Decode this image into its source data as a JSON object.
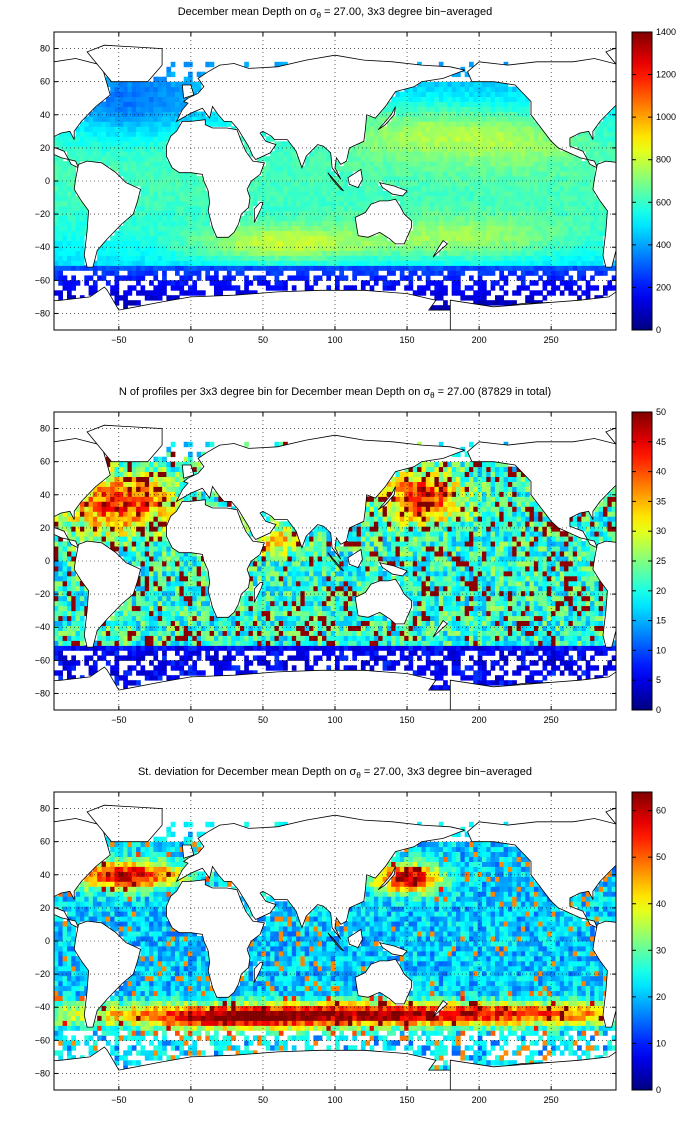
{
  "panels": [
    {
      "title_pre": "December mean Depth on σ",
      "title_sub": "θ",
      "title_post": " = 27.00, 3x3 degree bin−averaged",
      "colorbar_ticks": [
        "0",
        "200",
        "400",
        "600",
        "800",
        "1000",
        "1200",
        "1400"
      ],
      "colorbar_range": [
        0,
        1400
      ],
      "field": "depth"
    },
    {
      "title_pre": "N of profiles per 3x3 degree bin for December mean Depth on σ",
      "title_sub": "θ",
      "title_post": " = 27.00 (87829 in total)",
      "colorbar_ticks": [
        "0",
        "5",
        "10",
        "15",
        "20",
        "25",
        "30",
        "35",
        "40",
        "45",
        "50"
      ],
      "colorbar_range": [
        0,
        50
      ],
      "field": "count"
    },
    {
      "title_pre": "St. deviation for December mean Depth on σ",
      "title_sub": "θ",
      "title_post": " = 27.00, 3x3 degree bin−averaged",
      "colorbar_ticks": [
        "0",
        "10",
        "20",
        "30",
        "40",
        "50",
        "60"
      ],
      "colorbar_range": [
        0,
        64
      ],
      "field": "std"
    }
  ],
  "axes": {
    "x_ticks": [
      "-50",
      "0",
      "50",
      "100",
      "150",
      "200",
      "250"
    ],
    "y_ticks": [
      "80",
      "60",
      "40",
      "20",
      "0",
      "-20",
      "-40",
      "-60",
      "-80"
    ],
    "x_range": [
      -95,
      295
    ],
    "y_range": [
      -90,
      90
    ],
    "grid": "dotted"
  },
  "colormap": "jet"
}
